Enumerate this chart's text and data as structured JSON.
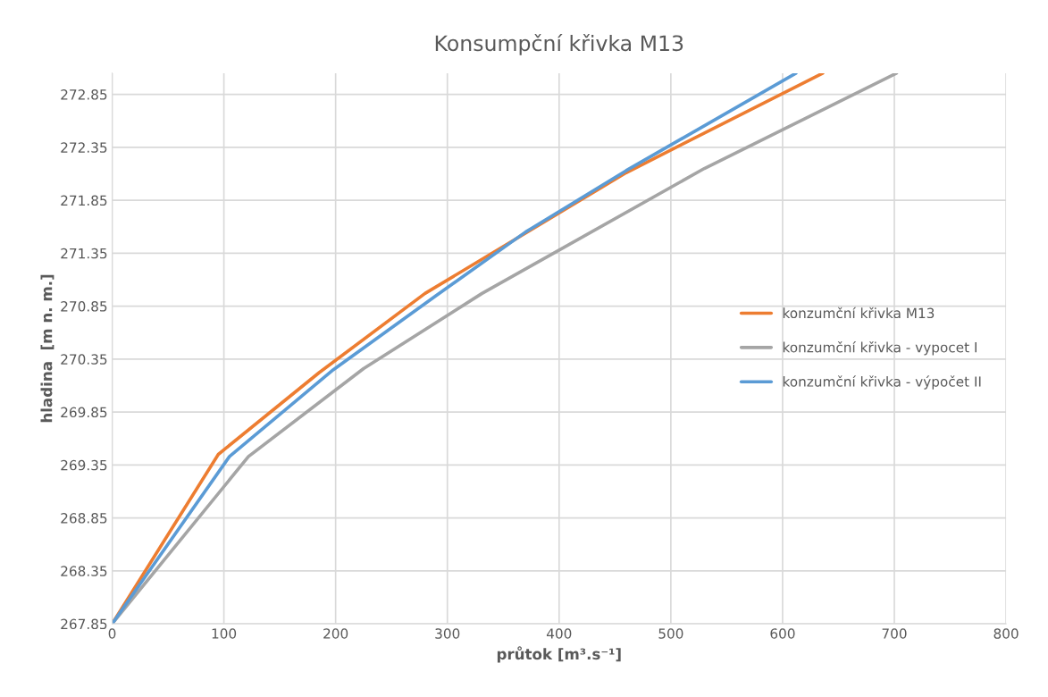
{
  "chart_data": {
    "type": "line",
    "title": "Konsumpční křivka M13",
    "xlabel": "průtok [m³.s⁻¹]",
    "ylabel": "hladina  [m n. m.]",
    "xlim": [
      0,
      800
    ],
    "xticks": [
      0,
      100,
      200,
      300,
      400,
      500,
      600,
      700,
      800
    ],
    "ylim": [
      267.85,
      273.05
    ],
    "yticks": [
      267.85,
      268.35,
      268.85,
      269.35,
      269.85,
      270.35,
      270.85,
      271.35,
      271.85,
      272.35,
      272.85
    ],
    "grid": true,
    "legend": "right",
    "line_style": "solid",
    "marker": "none",
    "series": [
      {
        "name": "konzumční křivka M13",
        "color": "#ed7d31",
        "x": [
          0,
          95,
          185,
          280,
          460,
          636
        ],
        "values": [
          267.85,
          269.45,
          270.22,
          270.97,
          272.11,
          273.05
        ]
      },
      {
        "name": "konzumční křivka - vypocet I",
        "color": "#a5a5a5",
        "x": [
          0,
          122,
          225,
          331,
          530,
          702
        ],
        "values": [
          267.85,
          269.43,
          270.26,
          270.97,
          272.15,
          273.05
        ]
      },
      {
        "name": "konzumční křivka - výpočet II",
        "color": "#5b9bd5",
        "x": [
          0,
          105,
          198,
          290,
          370,
          460,
          612
        ],
        "values": [
          267.85,
          269.43,
          270.25,
          270.95,
          271.55,
          272.13,
          273.05
        ]
      }
    ]
  }
}
